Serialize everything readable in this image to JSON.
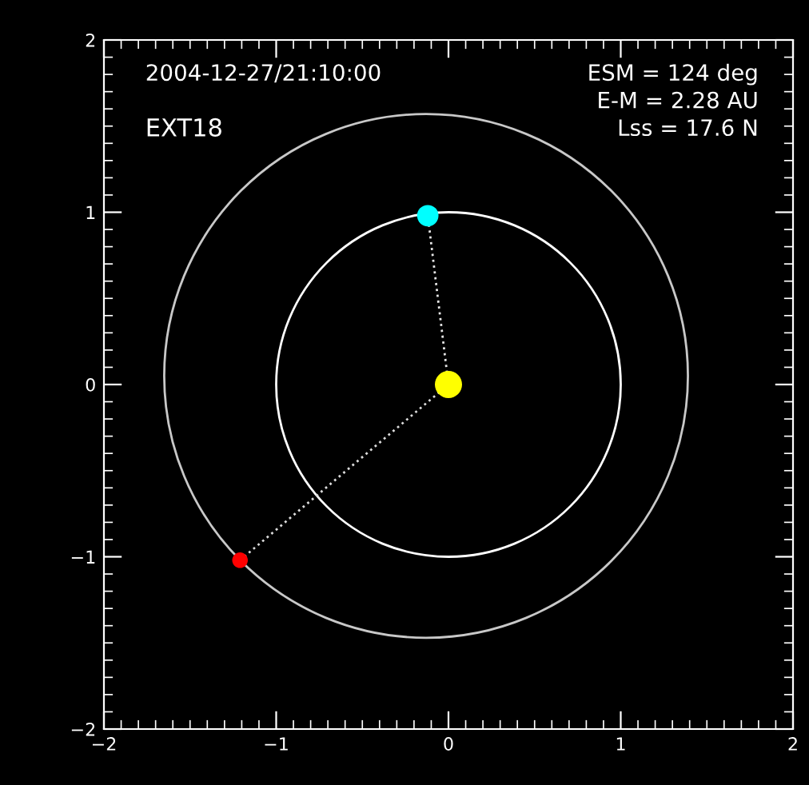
{
  "chart_data": {
    "type": "line",
    "xlim": [
      -2,
      2
    ],
    "ylim": [
      -2,
      2
    ],
    "xticks": [
      {
        "value": -2,
        "label": "−2"
      },
      {
        "value": -1,
        "label": "−1"
      },
      0,
      1,
      2
    ],
    "yticks": [
      {
        "value": -2,
        "label": "−2"
      },
      {
        "value": -1,
        "label": "−1"
      },
      0,
      1,
      2
    ],
    "grid": false,
    "legend": false,
    "annotations": [
      "2004-12-27/21:10:00",
      "EXT18",
      "ESM = 124 deg",
      "E-M = 2.28 AU",
      "Lss = 17.6 N"
    ],
    "series": [
      {
        "color": "#e6e6e6",
        "line_style": "dotted",
        "x": [
          0,
          -0.12
        ],
        "values": [
          0,
          0.98
        ]
      },
      {
        "color": "#dcdcdc",
        "line_style": "dotted",
        "x": [
          0,
          -1.21
        ],
        "values": [
          0,
          -1.02
        ]
      },
      {
        "type": "bubble",
        "x": [
          0,
          -0.12,
          -1.21
        ],
        "values": [
          0,
          0.98,
          -1.02
        ],
        "sizes": [
          1,
          0.62,
          0.33
        ],
        "colors": [
          "#ffff00",
          "#00ffff",
          "#ff0000"
        ]
      }
    ]
  }
}
